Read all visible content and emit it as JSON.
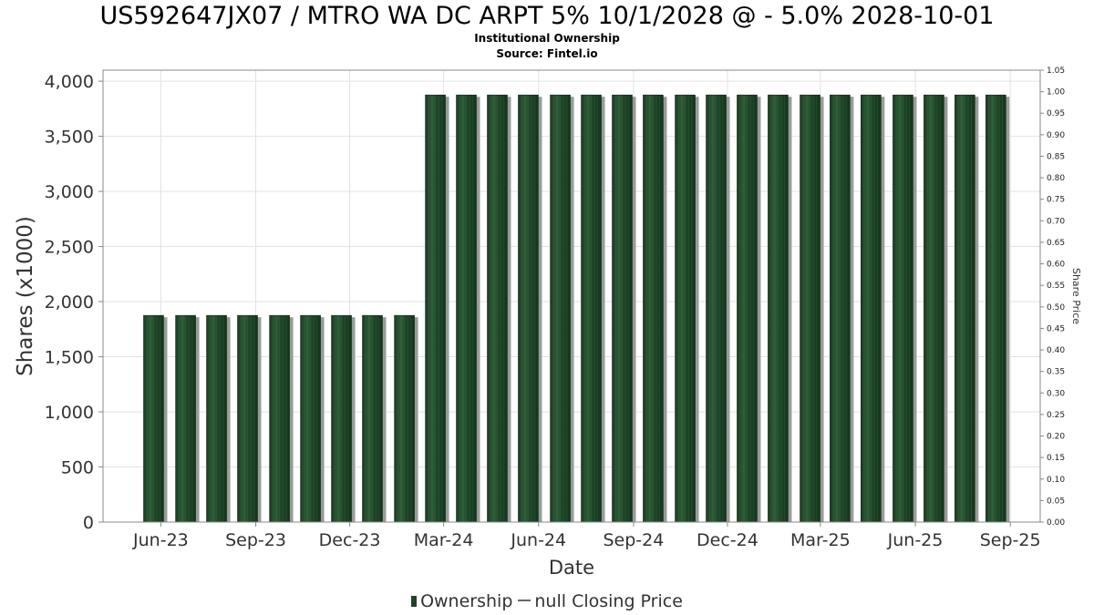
{
  "header": {
    "title": "US592647JX07 / MTRO WA DC ARPT 5% 10/1/2028 @ - 5.0% 2028-10-01",
    "subtitle": "Institutional Ownership",
    "source": "Source: Fintel.io"
  },
  "legend": {
    "ownership": "Ownership",
    "price": "null Closing Price"
  },
  "colors": {
    "bar": "#1e4427",
    "bar_highlight": "#2f5e38",
    "bar_shadow": "#9a9a9a",
    "grid": "#e2e2e2",
    "axis": "#888888",
    "text": "#333333"
  },
  "chart_data": {
    "type": "bar",
    "title": "US592647JX07 / MTRO WA DC ARPT 5% 10/1/2028 @ - 5.0% 2028-10-01",
    "xlabel": "Date",
    "ylabel": "Shares (x1000)",
    "y2label": "Share Price",
    "ylim": [
      0,
      4100
    ],
    "y2lim": [
      0,
      1.05
    ],
    "yticks": [
      0,
      500,
      1000,
      1500,
      2000,
      2500,
      3000,
      3500,
      4000
    ],
    "ytick_labels": [
      "0",
      "500",
      "1,000",
      "1,500",
      "2,000",
      "2,500",
      "3,000",
      "3,500",
      "4,000"
    ],
    "y2ticks": [
      0.0,
      0.05,
      0.1,
      0.15,
      0.2,
      0.25,
      0.3,
      0.35,
      0.4,
      0.45,
      0.5,
      0.55,
      0.6,
      0.65,
      0.7,
      0.75,
      0.8,
      0.85,
      0.9,
      0.95,
      1.0,
      1.05
    ],
    "y2tick_labels": [
      "0.00",
      "0.05",
      "0.10",
      "0.15",
      "0.20",
      "0.25",
      "0.30",
      "0.35",
      "0.40",
      "0.45",
      "0.50",
      "0.55",
      "0.60",
      "0.65",
      "0.70",
      "0.75",
      "0.80",
      "0.85",
      "0.90",
      "0.95",
      "1.00",
      "1.05"
    ],
    "xlim": [
      "2023-04-06",
      "2025-09-30"
    ],
    "xticks": [
      "2023-06-01",
      "2023-09-01",
      "2023-12-01",
      "2024-03-01",
      "2024-06-01",
      "2024-09-01",
      "2024-12-01",
      "2025-03-01",
      "2025-06-01",
      "2025-09-01"
    ],
    "xtick_labels": [
      "Jun-23",
      "Sep-23",
      "Dec-23",
      "Mar-24",
      "Jun-24",
      "Sep-24",
      "Dec-24",
      "Mar-25",
      "Jun-25",
      "Sep-25"
    ],
    "grid": true,
    "legend_position": "bottom",
    "series": [
      {
        "name": "Ownership",
        "x": [
          "2023-05-25",
          "2023-06-25",
          "2023-07-25",
          "2023-08-24",
          "2023-09-24",
          "2023-10-24",
          "2023-11-23",
          "2023-12-23",
          "2024-01-23",
          "2024-02-22",
          "2024-03-23",
          "2024-04-22",
          "2024-05-22",
          "2024-06-22",
          "2024-07-22",
          "2024-08-21",
          "2024-09-20",
          "2024-10-21",
          "2024-11-20",
          "2024-12-20",
          "2025-01-19",
          "2025-02-19",
          "2025-03-20",
          "2025-04-19",
          "2025-05-20",
          "2025-06-19",
          "2025-07-19",
          "2025-08-18"
        ],
        "values": [
          1875,
          1875,
          1875,
          1875,
          1875,
          1875,
          1875,
          1875,
          1875,
          3875,
          3875,
          3875,
          3875,
          3875,
          3875,
          3875,
          3875,
          3875,
          3875,
          3875,
          3875,
          3875,
          3875,
          3875,
          3875,
          3875,
          3875,
          3875
        ]
      }
    ]
  }
}
